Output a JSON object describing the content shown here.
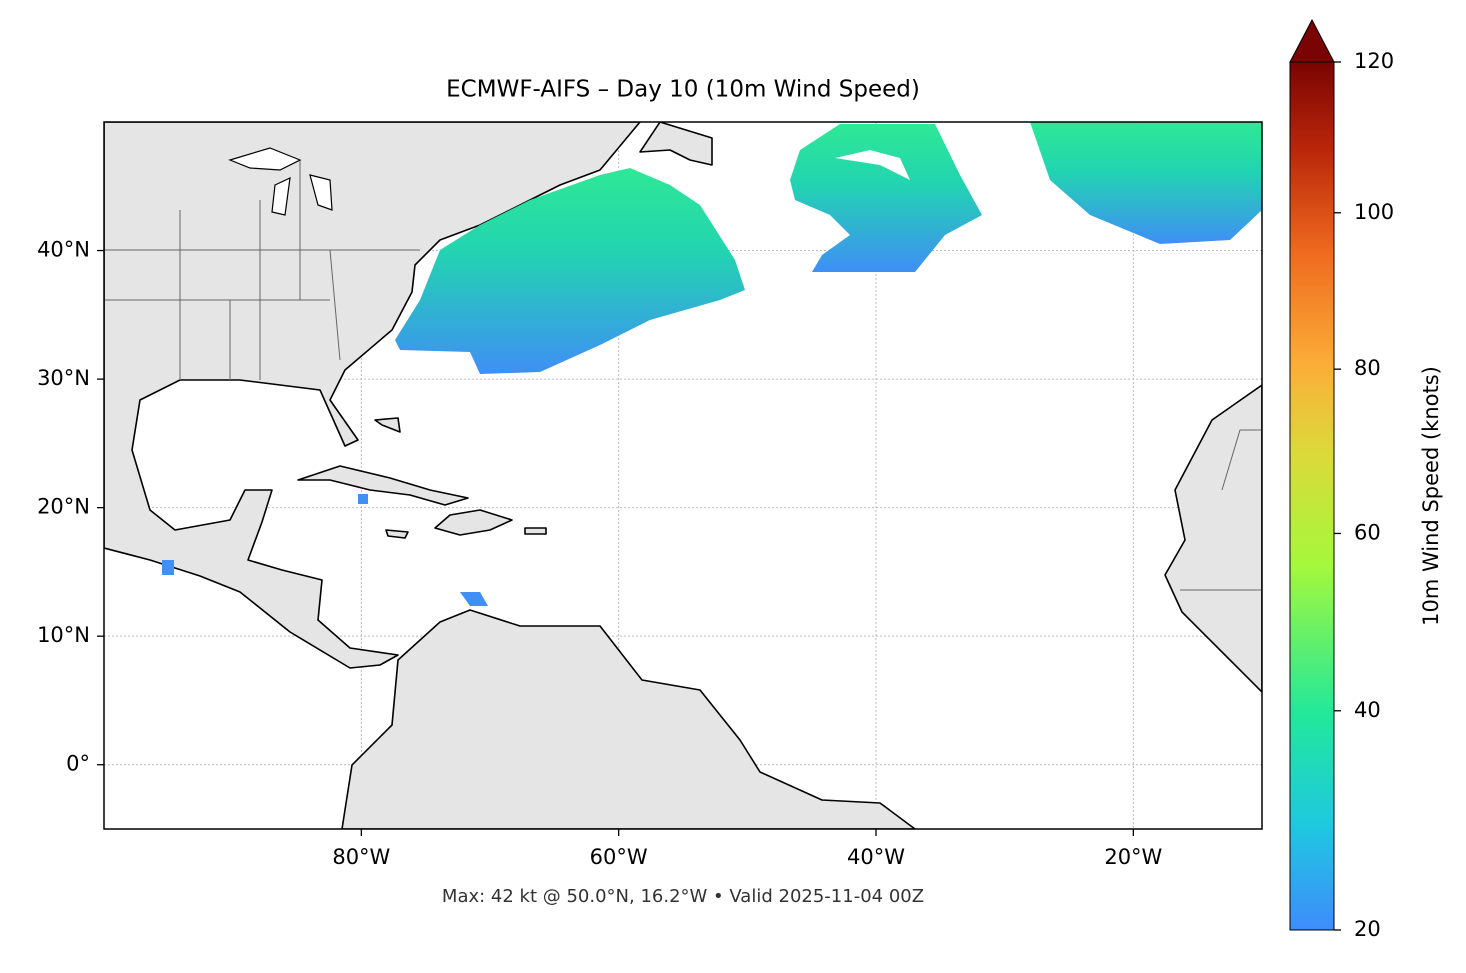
{
  "chart_data": {
    "type": "map",
    "title": "ECMWF-AIFS – Day 10 (10m Wind Speed)",
    "footer": "Max: 42 kt @ 50.0°N, 16.2°W • Valid 2025-11-04 00Z",
    "xlim": [
      -100,
      -10
    ],
    "ylim": [
      -5,
      50
    ],
    "xticks": [
      {
        "value": -80,
        "label": "80°W"
      },
      {
        "value": -60,
        "label": "60°W"
      },
      {
        "value": -40,
        "label": "40°W"
      },
      {
        "value": -20,
        "label": "20°W"
      }
    ],
    "yticks": [
      {
        "value": 0,
        "label": "0°"
      },
      {
        "value": 10,
        "label": "10°N"
      },
      {
        "value": 20,
        "label": "20°N"
      },
      {
        "value": 30,
        "label": "30°N"
      },
      {
        "value": 40,
        "label": "40°N"
      }
    ],
    "grid": true,
    "colorbar": {
      "label": "10m Wind Speed (knots)",
      "lim": [
        20,
        120
      ],
      "ticks": [
        20,
        40,
        60,
        80,
        100,
        120
      ],
      "gamma": 0.855,
      "extend": "max"
    }
  }
}
